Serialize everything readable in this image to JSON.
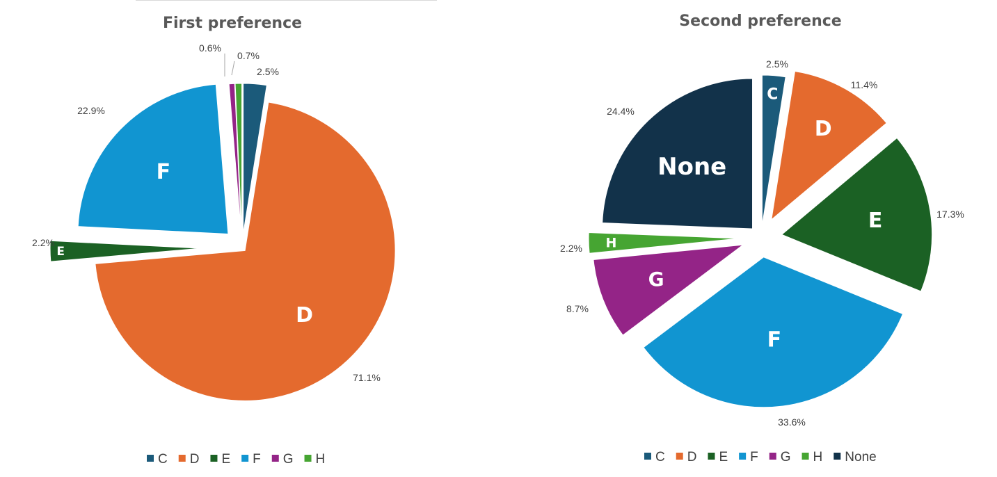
{
  "colors": {
    "C": "#1b5a7a",
    "D": "#e46a2e",
    "E": "#1b6124",
    "F": "#1195d1",
    "G": "#942487",
    "H": "#46a532",
    "None": "#12324a"
  },
  "chart_data": [
    {
      "type": "pie",
      "title": "First preference",
      "legend_position": "bottom",
      "categories": [
        "C",
        "D",
        "E",
        "F",
        "G",
        "H"
      ],
      "values": [
        2.5,
        71.1,
        2.2,
        22.9,
        0.6,
        0.7
      ],
      "value_labels": [
        "2.5%",
        "71.1%",
        "2.2%",
        "22.9%",
        "0.6%",
        "0.7%"
      ],
      "slice_labels": [
        "C",
        "D",
        "E",
        "F",
        "",
        ""
      ],
      "legend": [
        "C",
        "D",
        "E",
        "F",
        "G",
        "H"
      ]
    },
    {
      "type": "pie",
      "title": "Second preference",
      "legend_position": "bottom",
      "categories": [
        "C",
        "D",
        "E",
        "F",
        "G",
        "H",
        "None"
      ],
      "values": [
        2.5,
        11.4,
        17.3,
        33.6,
        8.7,
        2.2,
        24.4
      ],
      "value_labels": [
        "2.5%",
        "11.4%",
        "17.3%",
        "33.6%",
        "8.7%",
        "2.2%",
        "24.4%"
      ],
      "slice_labels": [
        "C",
        "D",
        "E",
        "F",
        "G",
        "H",
        "None"
      ],
      "legend": [
        "C",
        "D",
        "E",
        "F",
        "G",
        "H",
        "None"
      ]
    }
  ]
}
